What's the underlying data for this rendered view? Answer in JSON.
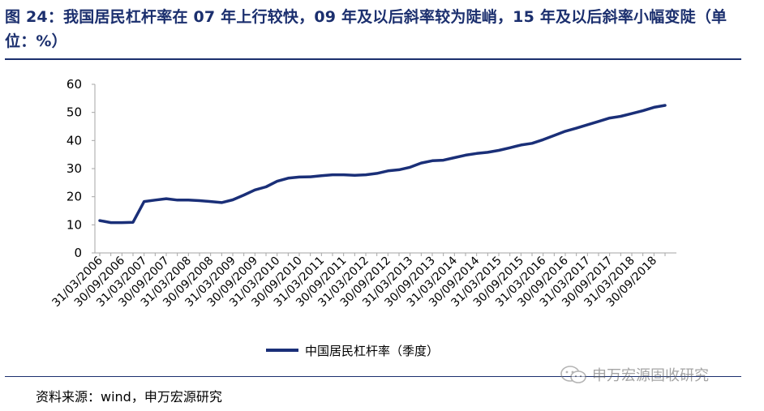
{
  "title": "图 24：我国居民杠杆率在 07 年上行较快，09 年及以后斜率较为陡峭，15 年及以后斜率小幅变陡（单位：%）",
  "source": "资料来源：wind，申万宏源研究",
  "watermark": "申万宏源固收研究",
  "colors": {
    "title": "#1b2f6e",
    "line": "#1a2f78",
    "axis": "#a6a6a6"
  },
  "chart_data": {
    "type": "line",
    "title": "",
    "xlabel": "",
    "ylabel": "",
    "ylim": [
      0,
      60
    ],
    "yticks": [
      0,
      10,
      20,
      30,
      40,
      50,
      60
    ],
    "legend_position": "bottom",
    "x_tick_labels": [
      "31/03/2006",
      "30/09/2006",
      "31/03/2007",
      "30/09/2007",
      "31/03/2008",
      "30/09/2008",
      "31/03/2009",
      "30/09/2009",
      "31/03/2010",
      "30/09/2010",
      "31/03/2011",
      "30/09/2011",
      "31/03/2012",
      "30/09/2012",
      "31/03/2013",
      "30/09/2013",
      "31/03/2014",
      "30/09/2014",
      "31/03/2015",
      "30/09/2015",
      "31/03/2016",
      "30/09/2016",
      "31/03/2017",
      "30/09/2017",
      "31/03/2018",
      "30/09/2018"
    ],
    "x": [
      "2006Q1",
      "2006Q2",
      "2006Q3",
      "2006Q4",
      "2007Q1",
      "2007Q2",
      "2007Q3",
      "2007Q4",
      "2008Q1",
      "2008Q2",
      "2008Q3",
      "2008Q4",
      "2009Q1",
      "2009Q2",
      "2009Q3",
      "2009Q4",
      "2010Q1",
      "2010Q2",
      "2010Q3",
      "2010Q4",
      "2011Q1",
      "2011Q2",
      "2011Q3",
      "2011Q4",
      "2012Q1",
      "2012Q2",
      "2012Q3",
      "2012Q4",
      "2013Q1",
      "2013Q2",
      "2013Q3",
      "2013Q4",
      "2014Q1",
      "2014Q2",
      "2014Q3",
      "2014Q4",
      "2015Q1",
      "2015Q2",
      "2015Q3",
      "2015Q4",
      "2016Q1",
      "2016Q2",
      "2016Q3",
      "2016Q4",
      "2017Q1",
      "2017Q2",
      "2017Q3",
      "2017Q4",
      "2018Q1",
      "2018Q2",
      "2018Q3",
      "2018Q4"
    ],
    "series": [
      {
        "name": "中国居民杠杆率（季度）",
        "values": [
          11.5,
          10.8,
          10.8,
          10.9,
          18.3,
          18.8,
          19.3,
          18.8,
          18.8,
          18.6,
          18.3,
          17.9,
          18.9,
          20.6,
          22.4,
          23.5,
          25.5,
          26.6,
          27.0,
          27.1,
          27.5,
          27.8,
          27.8,
          27.6,
          27.8,
          28.3,
          29.2,
          29.6,
          30.5,
          32.0,
          32.8,
          33.0,
          33.9,
          34.8,
          35.4,
          35.8,
          36.5,
          37.4,
          38.4,
          39.0,
          40.3,
          41.8,
          43.3,
          44.4,
          45.6,
          46.8,
          48.0,
          48.6,
          49.6,
          50.6,
          51.8,
          52.5
        ]
      }
    ]
  }
}
